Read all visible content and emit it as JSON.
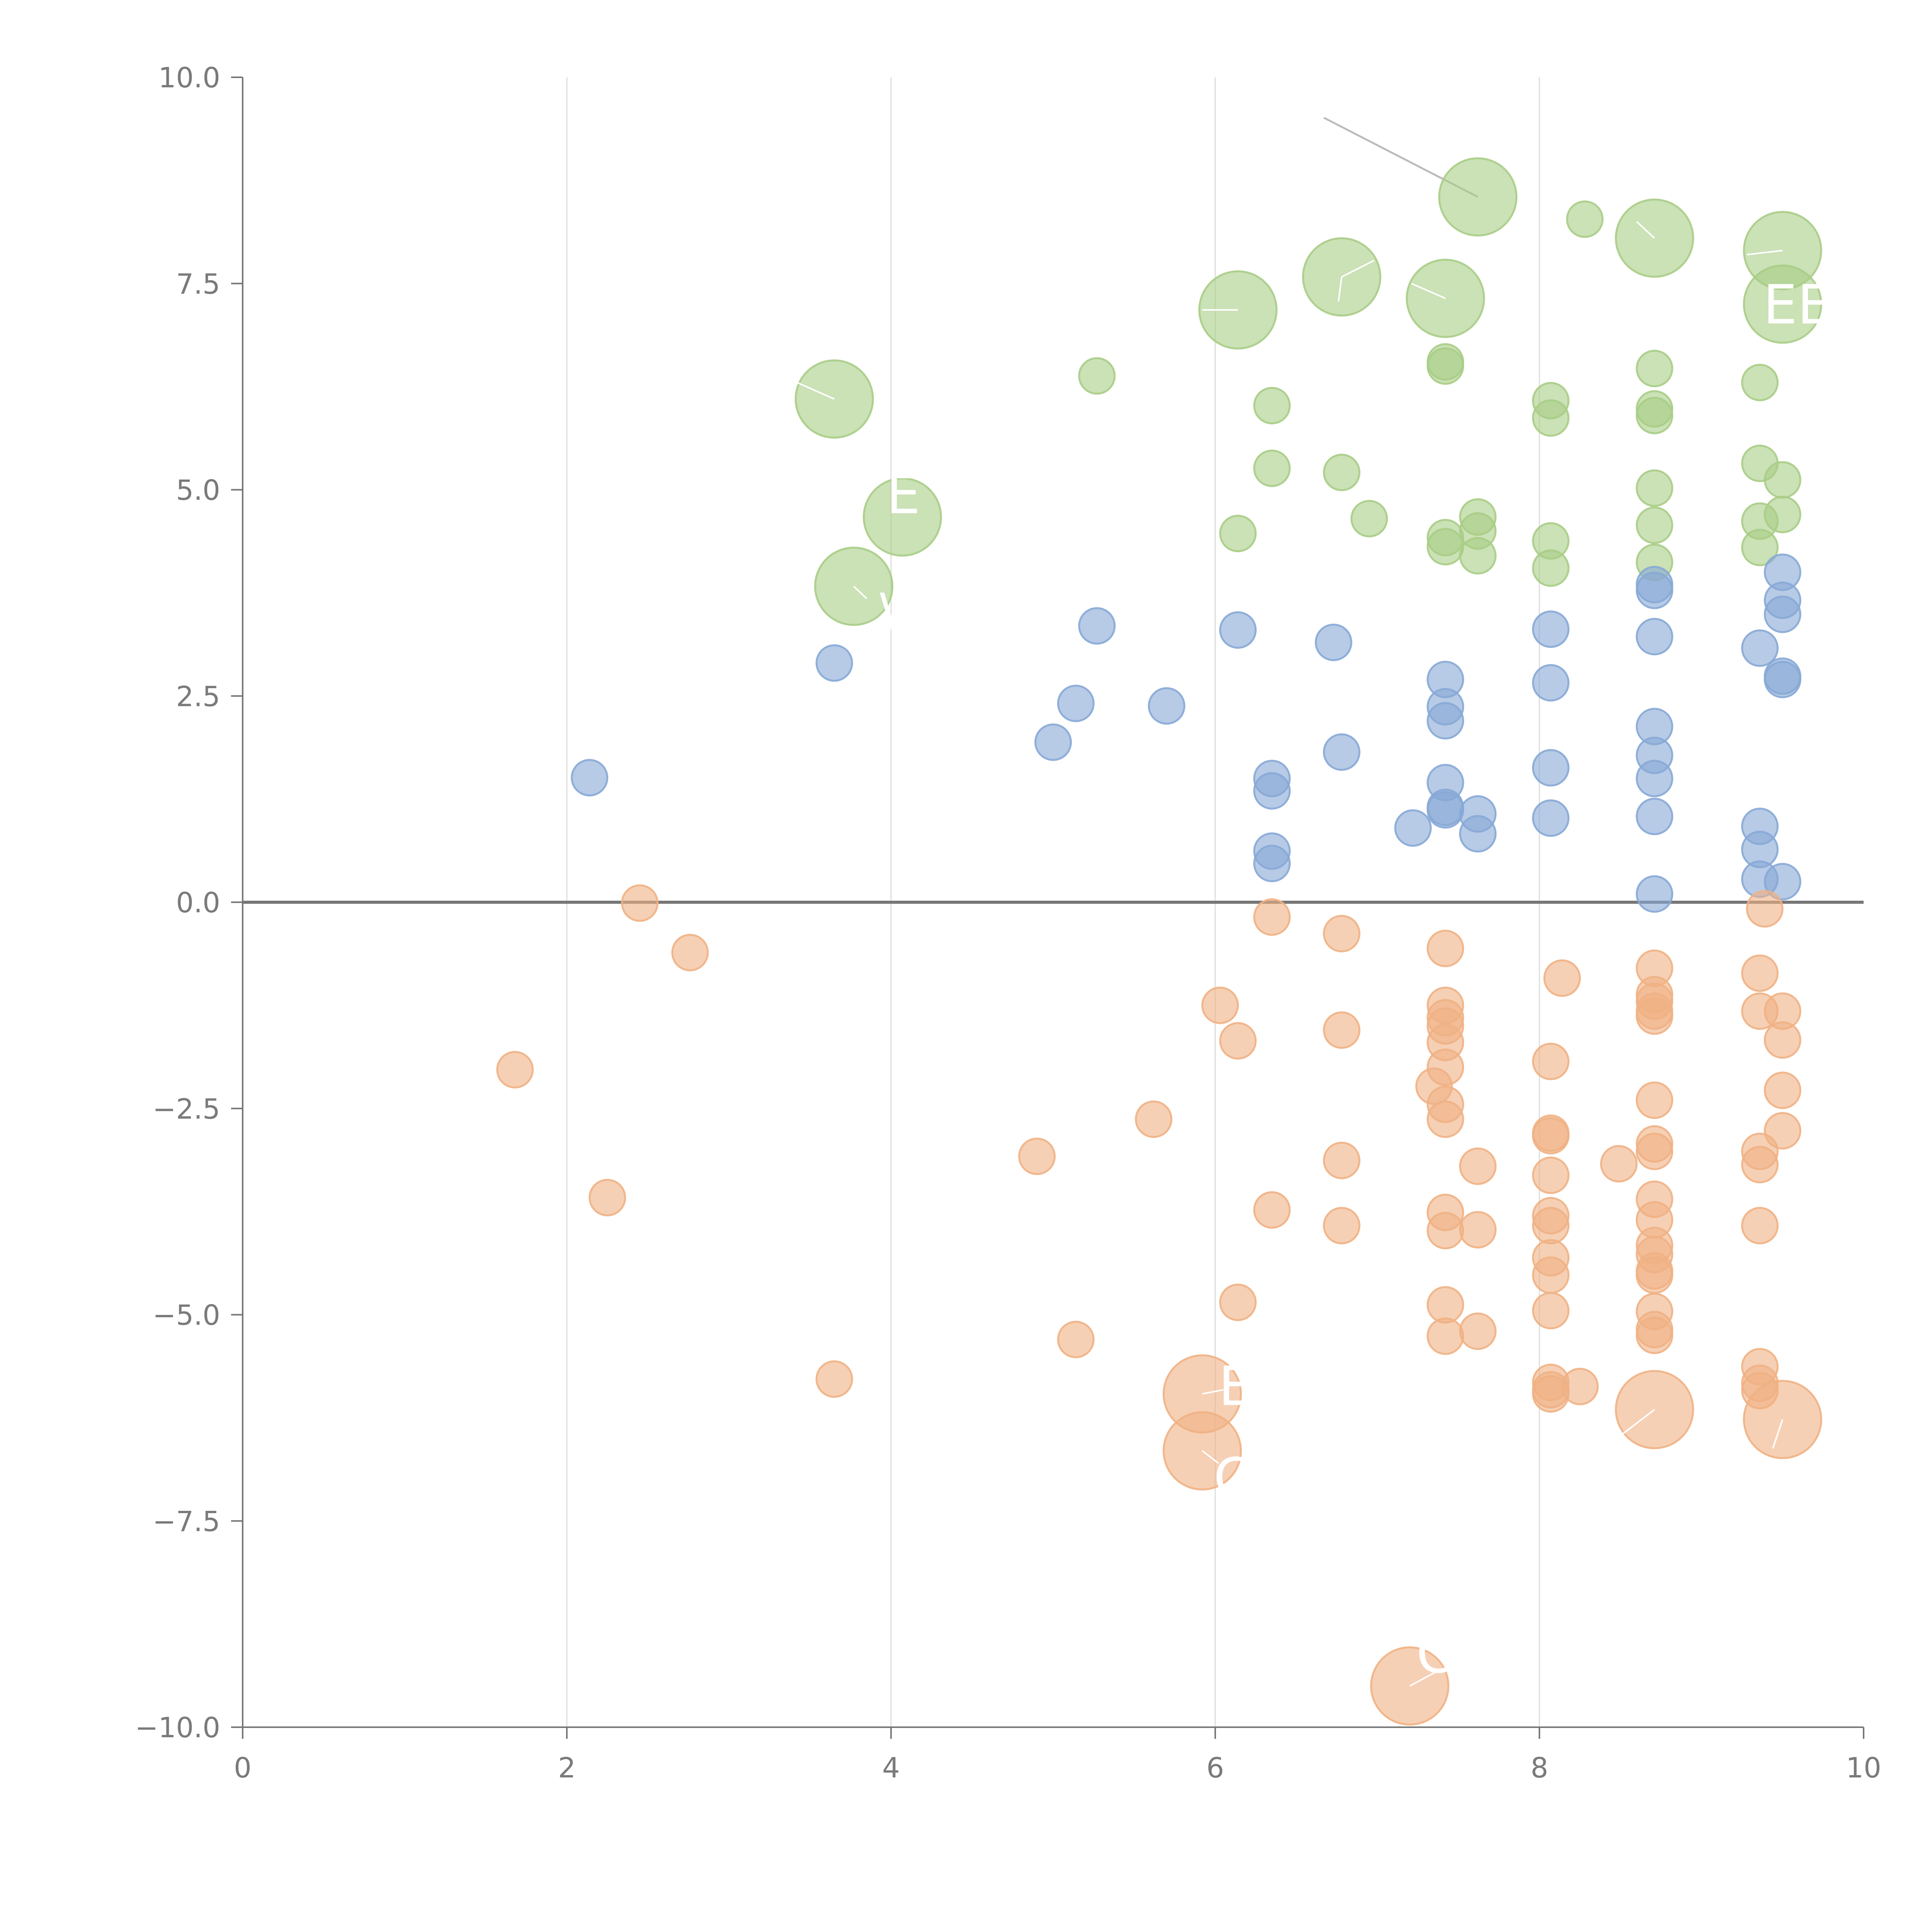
{
  "chart_data": {
    "type": "scatter",
    "title": "",
    "xlabel": "",
    "ylabel": "",
    "xlim": [
      0,
      10
    ],
    "ylim": [
      -10,
      10
    ],
    "x_ticks": [
      "0",
      "2",
      "4",
      "6",
      "8",
      "10"
    ],
    "y_ticks": [
      "−10.0",
      "−7.5",
      "−5.0",
      "−2.5",
      "0.0",
      "2.5",
      "5.0",
      "7.5",
      "10.0"
    ],
    "x_tick_values": [
      0,
      2,
      4,
      6,
      8,
      10
    ],
    "y_tick_values": [
      -10,
      -7.5,
      -5,
      -2.5,
      0,
      2.5,
      5,
      7.5,
      10
    ],
    "vertical_grid": true,
    "zero_line": true,
    "series": [
      {
        "name": "green",
        "color": "#a9cd86",
        "points": [
          {
            "x": 7.62,
            "y": 8.55,
            "s": "L"
          },
          {
            "x": 8.28,
            "y": 8.28,
            "s": "S"
          },
          {
            "x": 8.71,
            "y": 8.05,
            "s": "L"
          },
          {
            "x": 9.5,
            "y": 7.9,
            "s": "L"
          },
          {
            "x": 6.78,
            "y": 7.58,
            "s": "L"
          },
          {
            "x": 7.42,
            "y": 7.32,
            "s": "L"
          },
          {
            "x": 6.14,
            "y": 7.18,
            "s": "L"
          },
          {
            "x": 9.5,
            "y": 7.25,
            "s": "L"
          },
          {
            "x": 3.65,
            "y": 6.1,
            "s": "L"
          },
          {
            "x": 5.27,
            "y": 6.38,
            "s": "S"
          },
          {
            "x": 6.35,
            "y": 6.02,
            "s": "S"
          },
          {
            "x": 7.42,
            "y": 6.55,
            "s": "S"
          },
          {
            "x": 7.42,
            "y": 6.5,
            "s": "S"
          },
          {
            "x": 8.07,
            "y": 6.08,
            "s": "S"
          },
          {
            "x": 8.07,
            "y": 5.87,
            "s": "S"
          },
          {
            "x": 8.71,
            "y": 6.47,
            "s": "S"
          },
          {
            "x": 8.71,
            "y": 5.98,
            "s": "S"
          },
          {
            "x": 8.71,
            "y": 5.9,
            "s": "S"
          },
          {
            "x": 9.36,
            "y": 6.3,
            "s": "S"
          },
          {
            "x": 6.35,
            "y": 5.26,
            "s": "S"
          },
          {
            "x": 6.78,
            "y": 5.21,
            "s": "S"
          },
          {
            "x": 4.07,
            "y": 4.67,
            "s": "L"
          },
          {
            "x": 3.77,
            "y": 3.83,
            "s": "L"
          },
          {
            "x": 6.14,
            "y": 4.47,
            "s": "S"
          },
          {
            "x": 6.95,
            "y": 4.65,
            "s": "S"
          },
          {
            "x": 7.42,
            "y": 4.42,
            "s": "S"
          },
          {
            "x": 7.42,
            "y": 4.31,
            "s": "S"
          },
          {
            "x": 7.62,
            "y": 4.67,
            "s": "S"
          },
          {
            "x": 7.62,
            "y": 4.5,
            "s": "S"
          },
          {
            "x": 7.62,
            "y": 4.2,
            "s": "S"
          },
          {
            "x": 8.07,
            "y": 4.38,
            "s": "S"
          },
          {
            "x": 8.07,
            "y": 4.05,
            "s": "S"
          },
          {
            "x": 8.71,
            "y": 5.02,
            "s": "S"
          },
          {
            "x": 8.71,
            "y": 4.57,
            "s": "S"
          },
          {
            "x": 8.71,
            "y": 4.12,
            "s": "S"
          },
          {
            "x": 9.36,
            "y": 5.32,
            "s": "S"
          },
          {
            "x": 9.36,
            "y": 4.62,
            "s": "S"
          },
          {
            "x": 9.36,
            "y": 4.3,
            "s": "S"
          },
          {
            "x": 9.5,
            "y": 5.12,
            "s": "S"
          },
          {
            "x": 9.5,
            "y": 4.7,
            "s": "S"
          }
        ]
      },
      {
        "name": "blue",
        "color": "#87a8d6",
        "points": [
          {
            "x": 2.14,
            "y": 1.51,
            "s": "S"
          },
          {
            "x": 3.65,
            "y": 2.9,
            "s": "S"
          },
          {
            "x": 5.0,
            "y": 1.94,
            "s": "S"
          },
          {
            "x": 5.14,
            "y": 2.41,
            "s": "S"
          },
          {
            "x": 5.27,
            "y": 3.35,
            "s": "S"
          },
          {
            "x": 5.7,
            "y": 2.38,
            "s": "S"
          },
          {
            "x": 6.14,
            "y": 3.3,
            "s": "S"
          },
          {
            "x": 6.35,
            "y": 1.5,
            "s": "S"
          },
          {
            "x": 6.35,
            "y": 1.35,
            "s": "S"
          },
          {
            "x": 6.35,
            "y": 0.62,
            "s": "S"
          },
          {
            "x": 6.35,
            "y": 0.47,
            "s": "S"
          },
          {
            "x": 6.73,
            "y": 3.15,
            "s": "S"
          },
          {
            "x": 6.78,
            "y": 1.82,
            "s": "S"
          },
          {
            "x": 7.22,
            "y": 0.9,
            "s": "S"
          },
          {
            "x": 7.42,
            "y": 2.7,
            "s": "S"
          },
          {
            "x": 7.42,
            "y": 2.37,
            "s": "S"
          },
          {
            "x": 7.42,
            "y": 2.2,
            "s": "S"
          },
          {
            "x": 7.42,
            "y": 1.45,
            "s": "S"
          },
          {
            "x": 7.42,
            "y": 1.15,
            "s": "S"
          },
          {
            "x": 7.42,
            "y": 1.12,
            "s": "S"
          },
          {
            "x": 7.62,
            "y": 1.07,
            "s": "S"
          },
          {
            "x": 7.62,
            "y": 0.83,
            "s": "S"
          },
          {
            "x": 8.07,
            "y": 3.31,
            "s": "S"
          },
          {
            "x": 8.07,
            "y": 2.66,
            "s": "S"
          },
          {
            "x": 8.07,
            "y": 1.63,
            "s": "S"
          },
          {
            "x": 8.07,
            "y": 1.02,
            "s": "S"
          },
          {
            "x": 8.71,
            "y": 3.85,
            "s": "S"
          },
          {
            "x": 8.71,
            "y": 3.78,
            "s": "S"
          },
          {
            "x": 8.71,
            "y": 3.22,
            "s": "S"
          },
          {
            "x": 8.71,
            "y": 2.13,
            "s": "S"
          },
          {
            "x": 8.71,
            "y": 1.78,
            "s": "S"
          },
          {
            "x": 8.71,
            "y": 1.5,
            "s": "S"
          },
          {
            "x": 8.71,
            "y": 1.04,
            "s": "S"
          },
          {
            "x": 8.71,
            "y": 0.1,
            "s": "S"
          },
          {
            "x": 9.36,
            "y": 3.08,
            "s": "S"
          },
          {
            "x": 9.36,
            "y": 0.92,
            "s": "S"
          },
          {
            "x": 9.36,
            "y": 0.64,
            "s": "S"
          },
          {
            "x": 9.36,
            "y": 0.28,
            "s": "S"
          },
          {
            "x": 9.5,
            "y": 4.0,
            "s": "S"
          },
          {
            "x": 9.5,
            "y": 3.66,
            "s": "S"
          },
          {
            "x": 9.5,
            "y": 3.49,
            "s": "S"
          },
          {
            "x": 9.5,
            "y": 2.74,
            "s": "S"
          },
          {
            "x": 9.5,
            "y": 2.7,
            "s": "S"
          },
          {
            "x": 9.5,
            "y": 0.25,
            "s": "S"
          }
        ]
      },
      {
        "name": "orange",
        "color": "#f0b184",
        "points": [
          {
            "x": 2.45,
            "y": -0.01,
            "s": "S"
          },
          {
            "x": 2.76,
            "y": -0.61,
            "s": "S"
          },
          {
            "x": 1.68,
            "y": -2.03,
            "s": "S"
          },
          {
            "x": 2.25,
            "y": -3.58,
            "s": "S"
          },
          {
            "x": 3.65,
            "y": -5.78,
            "s": "S"
          },
          {
            "x": 4.9,
            "y": -3.08,
            "s": "S"
          },
          {
            "x": 5.14,
            "y": -5.3,
            "s": "S"
          },
          {
            "x": 5.62,
            "y": -2.63,
            "s": "S"
          },
          {
            "x": 6.03,
            "y": -1.25,
            "s": "S"
          },
          {
            "x": 6.14,
            "y": -1.68,
            "s": "S"
          },
          {
            "x": 6.14,
            "y": -4.85,
            "s": "S"
          },
          {
            "x": 5.92,
            "y": -5.96,
            "s": "L"
          },
          {
            "x": 5.92,
            "y": -6.65,
            "s": "L"
          },
          {
            "x": 6.35,
            "y": -0.18,
            "s": "S"
          },
          {
            "x": 6.35,
            "y": -3.73,
            "s": "S"
          },
          {
            "x": 6.78,
            "y": -0.38,
            "s": "S"
          },
          {
            "x": 6.78,
            "y": -1.55,
            "s": "S"
          },
          {
            "x": 6.78,
            "y": -3.13,
            "s": "S"
          },
          {
            "x": 6.78,
            "y": -3.92,
            "s": "S"
          },
          {
            "x": 7.2,
            "y": -9.5,
            "s": "L"
          },
          {
            "x": 7.35,
            "y": -2.23,
            "s": "S"
          },
          {
            "x": 7.42,
            "y": -0.56,
            "s": "S"
          },
          {
            "x": 7.42,
            "y": -1.25,
            "s": "S"
          },
          {
            "x": 7.42,
            "y": -1.4,
            "s": "S"
          },
          {
            "x": 7.42,
            "y": -1.5,
            "s": "S"
          },
          {
            "x": 7.42,
            "y": -1.7,
            "s": "S"
          },
          {
            "x": 7.42,
            "y": -2.0,
            "s": "S"
          },
          {
            "x": 7.42,
            "y": -2.45,
            "s": "S"
          },
          {
            "x": 7.42,
            "y": -2.63,
            "s": "S"
          },
          {
            "x": 7.42,
            "y": -3.76,
            "s": "S"
          },
          {
            "x": 7.42,
            "y": -3.98,
            "s": "S"
          },
          {
            "x": 7.42,
            "y": -4.88,
            "s": "S"
          },
          {
            "x": 7.42,
            "y": -5.26,
            "s": "S"
          },
          {
            "x": 7.62,
            "y": -3.2,
            "s": "S"
          },
          {
            "x": 7.62,
            "y": -3.97,
            "s": "S"
          },
          {
            "x": 7.62,
            "y": -5.2,
            "s": "S"
          },
          {
            "x": 8.07,
            "y": -1.93,
            "s": "S"
          },
          {
            "x": 8.07,
            "y": -2.8,
            "s": "S"
          },
          {
            "x": 8.07,
            "y": -2.83,
            "s": "S"
          },
          {
            "x": 8.07,
            "y": -3.31,
            "s": "S"
          },
          {
            "x": 8.07,
            "y": -3.8,
            "s": "S"
          },
          {
            "x": 8.07,
            "y": -3.92,
            "s": "S"
          },
          {
            "x": 8.07,
            "y": -4.31,
            "s": "S"
          },
          {
            "x": 8.07,
            "y": -4.52,
            "s": "S"
          },
          {
            "x": 8.07,
            "y": -4.95,
            "s": "S"
          },
          {
            "x": 8.07,
            "y": -5.82,
            "s": "S"
          },
          {
            "x": 8.07,
            "y": -5.91,
            "s": "S"
          },
          {
            "x": 8.07,
            "y": -5.96,
            "s": "S"
          },
          {
            "x": 8.14,
            "y": -0.92,
            "s": "S"
          },
          {
            "x": 8.25,
            "y": -5.87,
            "s": "S"
          },
          {
            "x": 8.49,
            "y": -3.17,
            "s": "S"
          },
          {
            "x": 8.71,
            "y": -0.8,
            "s": "S"
          },
          {
            "x": 8.71,
            "y": -1.12,
            "s": "S"
          },
          {
            "x": 8.71,
            "y": -1.2,
            "s": "S"
          },
          {
            "x": 8.71,
            "y": -1.32,
            "s": "S"
          },
          {
            "x": 8.71,
            "y": -1.38,
            "s": "S"
          },
          {
            "x": 8.71,
            "y": -2.4,
            "s": "S"
          },
          {
            "x": 8.71,
            "y": -2.93,
            "s": "S"
          },
          {
            "x": 8.71,
            "y": -3.02,
            "s": "S"
          },
          {
            "x": 8.71,
            "y": -3.6,
            "s": "S"
          },
          {
            "x": 8.71,
            "y": -3.85,
            "s": "S"
          },
          {
            "x": 8.71,
            "y": -4.16,
            "s": "S"
          },
          {
            "x": 8.71,
            "y": -4.27,
            "s": "S"
          },
          {
            "x": 8.71,
            "y": -4.47,
            "s": "S"
          },
          {
            "x": 8.71,
            "y": -4.52,
            "s": "S"
          },
          {
            "x": 8.71,
            "y": -4.96,
            "s": "S"
          },
          {
            "x": 8.71,
            "y": -5.18,
            "s": "S"
          },
          {
            "x": 8.71,
            "y": -5.25,
            "s": "S"
          },
          {
            "x": 8.71,
            "y": -6.15,
            "s": "L"
          },
          {
            "x": 9.36,
            "y": -0.86,
            "s": "S"
          },
          {
            "x": 9.36,
            "y": -1.32,
            "s": "S"
          },
          {
            "x": 9.36,
            "y": -3.02,
            "s": "S"
          },
          {
            "x": 9.36,
            "y": -3.18,
            "s": "S"
          },
          {
            "x": 9.36,
            "y": -3.92,
            "s": "S"
          },
          {
            "x": 9.36,
            "y": -5.63,
            "s": "S"
          },
          {
            "x": 9.36,
            "y": -5.83,
            "s": "S"
          },
          {
            "x": 9.36,
            "y": -5.92,
            "s": "S"
          },
          {
            "x": 9.39,
            "y": -0.08,
            "s": "S"
          },
          {
            "x": 9.5,
            "y": -1.32,
            "s": "S"
          },
          {
            "x": 9.5,
            "y": -1.67,
            "s": "S"
          },
          {
            "x": 9.5,
            "y": -2.28,
            "s": "S"
          },
          {
            "x": 9.5,
            "y": -2.77,
            "s": "S"
          },
          {
            "x": 9.5,
            "y": -6.27,
            "s": "L"
          }
        ]
      }
    ],
    "annotations": [
      {
        "text": "EEH",
        "x": 9.38,
        "y": 7.25
      },
      {
        "text": "E",
        "x": 3.97,
        "y": 4.95
      },
      {
        "text": "\\",
        "x": 3.93,
        "y": 3.51
      },
      {
        "text": "(",
        "x": 6.25,
        "y": 4.45
      },
      {
        "text": "E",
        "x": 6.02,
        "y": -5.86
      },
      {
        "text": "C",
        "x": 5.99,
        "y": -6.97
      },
      {
        "text": "C",
        "x": 7.24,
        "y": -9.1
      }
    ],
    "leaders": [
      {
        "x1": 6.67,
        "y1": 9.51,
        "x2": 7.62,
        "y2": 8.55,
        "style": "gray"
      },
      {
        "x1": 3.65,
        "y1": 6.1,
        "x2": 3.42,
        "y2": 6.3,
        "style": "white"
      },
      {
        "x1": 8.71,
        "y1": 8.05,
        "x2": 8.6,
        "y2": 8.25,
        "style": "white"
      },
      {
        "x1": 9.5,
        "y1": 7.9,
        "x2": 9.28,
        "y2": 7.85,
        "style": "white"
      },
      {
        "x1": 6.78,
        "y1": 7.58,
        "x2": 6.76,
        "y2": 7.28,
        "style": "white"
      },
      {
        "x1": 6.78,
        "y1": 7.58,
        "x2": 6.98,
        "y2": 7.78,
        "style": "white"
      },
      {
        "x1": 7.42,
        "y1": 7.32,
        "x2": 7.21,
        "y2": 7.5,
        "style": "white"
      },
      {
        "x1": 6.14,
        "y1": 7.18,
        "x2": 5.92,
        "y2": 7.18,
        "style": "white"
      },
      {
        "x1": 3.77,
        "y1": 3.83,
        "x2": 3.85,
        "y2": 3.68,
        "style": "white"
      },
      {
        "x1": 5.92,
        "y1": -5.96,
        "x2": 6.05,
        "y2": -5.91,
        "style": "white"
      },
      {
        "x1": 5.92,
        "y1": -6.65,
        "x2": 6.02,
        "y2": -6.8,
        "style": "white"
      },
      {
        "x1": 7.2,
        "y1": -9.5,
        "x2": 7.38,
        "y2": -9.31,
        "style": "white"
      },
      {
        "x1": 8.71,
        "y1": -6.15,
        "x2": 8.51,
        "y2": -6.45,
        "style": "white"
      },
      {
        "x1": 9.5,
        "y1": -6.27,
        "x2": 9.44,
        "y2": -6.62,
        "style": "white"
      }
    ]
  }
}
